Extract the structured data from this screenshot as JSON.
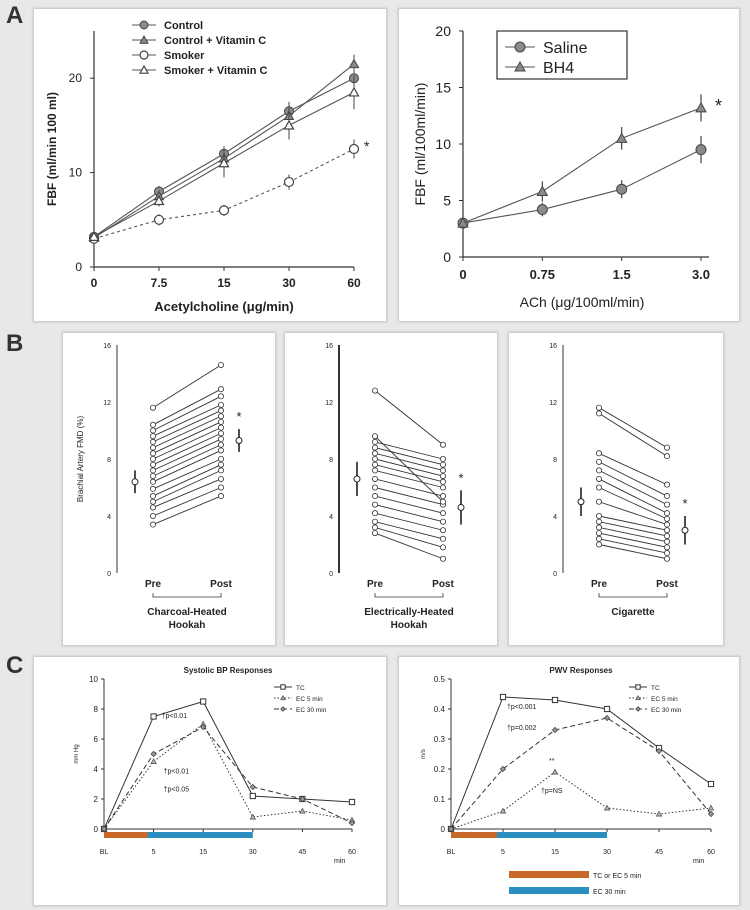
{
  "section_labels": {
    "a": "A",
    "b": "B",
    "c": "C"
  },
  "colors": {
    "tc_bar": "#c8692a",
    "ec30_bar": "#2a8fc0",
    "line": "#555555"
  },
  "chart_data": [
    {
      "id": "a1",
      "type": "line",
      "xlabel": "Acetylcholine (μg/min)",
      "ylabel": "FBF (ml/min 100 ml)",
      "categories": [
        "0",
        "7.5",
        "15",
        "30",
        "60"
      ],
      "ylim": [
        0,
        25
      ],
      "yticks": [
        0,
        10,
        20
      ],
      "series": [
        {
          "name": "Control",
          "marker": "circle-filled",
          "values": [
            3.2,
            8.0,
            12.0,
            16.5,
            20.0
          ],
          "err": [
            0.3,
            0.6,
            0.8,
            1.0,
            1.0
          ]
        },
        {
          "name": "Control + Vitamin C",
          "marker": "triangle-filled",
          "values": [
            3.1,
            7.5,
            11.5,
            16.0,
            21.5
          ],
          "err": [
            0.3,
            0.6,
            0.8,
            1.0,
            1.0
          ]
        },
        {
          "name": "Smoker",
          "marker": "circle-open",
          "values": [
            3.0,
            5.0,
            6.0,
            9.0,
            12.5
          ],
          "err": [
            0.3,
            0.6,
            0.6,
            0.8,
            1.0
          ]
        },
        {
          "name": "Smoker + Vitamin C",
          "marker": "triangle-open",
          "values": [
            3.2,
            7.0,
            11.0,
            15.0,
            18.5
          ],
          "err": [
            0.3,
            0.6,
            1.5,
            1.5,
            1.8
          ]
        }
      ],
      "annotation": "*"
    },
    {
      "id": "a2",
      "type": "line",
      "xlabel": "ACh (μg/100ml/min)",
      "ylabel": "FBF (ml/100ml/min)",
      "categories": [
        "0",
        "0.75",
        "1.5",
        "3.0"
      ],
      "ylim": [
        0,
        20
      ],
      "yticks": [
        0,
        5,
        10,
        15,
        20
      ],
      "series": [
        {
          "name": "Saline",
          "marker": "circle-filled",
          "values": [
            3.0,
            4.2,
            6.0,
            9.5
          ],
          "err": [
            0.3,
            0.6,
            0.8,
            1.2
          ]
        },
        {
          "name": "BH4",
          "marker": "triangle-filled",
          "values": [
            3.0,
            5.8,
            10.5,
            13.2
          ],
          "err": [
            0.3,
            0.9,
            1.0,
            1.2
          ]
        }
      ],
      "annotation": "*"
    },
    {
      "id": "b1",
      "type": "scatter",
      "ylabel": "Brachial Artery FMD (%)",
      "categories": [
        "Pre",
        "Post"
      ],
      "xlabel": "Charcoal-Heated\nHookah",
      "ylim": [
        0,
        16
      ],
      "yticks": [
        0,
        4,
        8,
        12,
        16
      ],
      "pre": [
        3.4,
        4.0,
        4.6,
        5.0,
        5.4,
        5.9,
        6.4,
        6.8,
        7.2,
        7.6,
        8.0,
        8.4,
        8.8,
        9.2,
        9.6,
        10.0,
        10.4,
        11.6
      ],
      "post": [
        5.4,
        6.0,
        6.6,
        7.2,
        7.6,
        8.0,
        8.6,
        9.0,
        9.4,
        9.8,
        10.2,
        10.6,
        11.0,
        11.4,
        11.8,
        12.4,
        12.9,
        14.6
      ],
      "pre_mean": 6.4,
      "pre_sd": 0.8,
      "post_mean": 9.3,
      "post_sd": 0.8,
      "annotation": "*"
    },
    {
      "id": "b2",
      "type": "scatter",
      "ylabel": "",
      "categories": [
        "Pre",
        "Post"
      ],
      "xlabel": "Electrically-Heated\nHookah",
      "ylim": [
        0,
        16
      ],
      "yticks": [
        0,
        4,
        8,
        12,
        16
      ],
      "pre": [
        2.8,
        3.2,
        3.6,
        4.2,
        4.8,
        5.4,
        6.0,
        6.6,
        7.2,
        7.6,
        8.0,
        8.4,
        8.8,
        9.2,
        9.6,
        12.8
      ],
      "post": [
        1.0,
        1.8,
        2.4,
        3.0,
        3.6,
        4.2,
        4.8,
        5.4,
        6.0,
        6.4,
        6.8,
        7.2,
        7.6,
        8.0,
        5.0,
        9.0
      ],
      "pre_mean": 6.6,
      "pre_sd": 1.2,
      "post_mean": 4.6,
      "post_sd": 1.2,
      "annotation": "*"
    },
    {
      "id": "b3",
      "type": "scatter",
      "ylabel": "",
      "categories": [
        "Pre",
        "Post"
      ],
      "xlabel": "Cigarette",
      "ylim": [
        0,
        16
      ],
      "yticks": [
        0,
        4,
        8,
        12,
        16
      ],
      "pre": [
        2.0,
        2.4,
        2.8,
        3.2,
        3.6,
        4.0,
        5.0,
        6.0,
        6.6,
        7.2,
        7.8,
        8.4,
        11.2,
        11.6
      ],
      "post": [
        1.0,
        1.4,
        1.8,
        2.2,
        2.6,
        3.0,
        3.4,
        3.8,
        4.2,
        4.8,
        5.4,
        6.2,
        8.2,
        8.8
      ],
      "pre_mean": 5.0,
      "pre_sd": 1.0,
      "post_mean": 3.0,
      "post_sd": 1.0,
      "annotation": "*"
    },
    {
      "id": "c1",
      "type": "line",
      "title": "Systolic BP Responses",
      "xlabel": "min",
      "ylabel": "mm Hg",
      "x": [
        "BL",
        "5",
        "15",
        "30",
        "45",
        "60"
      ],
      "ylim": [
        0,
        10
      ],
      "yticks": [
        0,
        2,
        4,
        6,
        8,
        10
      ],
      "series": [
        {
          "name": "TC",
          "marker": "square-open",
          "style": "solid",
          "values": [
            0,
            7.5,
            8.5,
            2.2,
            2.0,
            1.8
          ]
        },
        {
          "name": "EC 5 min",
          "marker": "triangle-small",
          "style": "dotted",
          "values": [
            0,
            4.5,
            7.0,
            0.8,
            1.2,
            0.6
          ]
        },
        {
          "name": "EC 30 min",
          "marker": "diamond",
          "style": "dashed",
          "values": [
            0,
            5.0,
            6.8,
            2.8,
            2.0,
            0.4
          ]
        }
      ],
      "annotations": [
        "†p<0.01",
        "†p<0.01",
        "†p<0.05"
      ]
    },
    {
      "id": "c2",
      "type": "line",
      "title": "PWV Responses",
      "xlabel": "min",
      "ylabel": "m/s",
      "x": [
        "BL",
        "5",
        "15",
        "30",
        "45",
        "60"
      ],
      "ylim": [
        0,
        0.5
      ],
      "yticks": [
        0,
        0.1,
        0.2,
        0.3,
        0.4,
        0.5
      ],
      "series": [
        {
          "name": "TC",
          "marker": "square-open",
          "style": "solid",
          "values": [
            0,
            0.44,
            0.43,
            0.4,
            0.27,
            0.15
          ]
        },
        {
          "name": "EC 5 min",
          "marker": "triangle-small",
          "style": "dotted",
          "values": [
            0,
            0.06,
            0.19,
            0.07,
            0.05,
            0.07
          ]
        },
        {
          "name": "EC 30 min",
          "marker": "diamond",
          "style": "dashed",
          "values": [
            0,
            0.2,
            0.33,
            0.37,
            0.26,
            0.05
          ]
        }
      ],
      "annotations": [
        "†p<0.001",
        "†p=0.002",
        "**",
        "†p=NS"
      ],
      "bar_legend": [
        "TC or EC 5 min",
        "EC 30 min"
      ]
    }
  ]
}
